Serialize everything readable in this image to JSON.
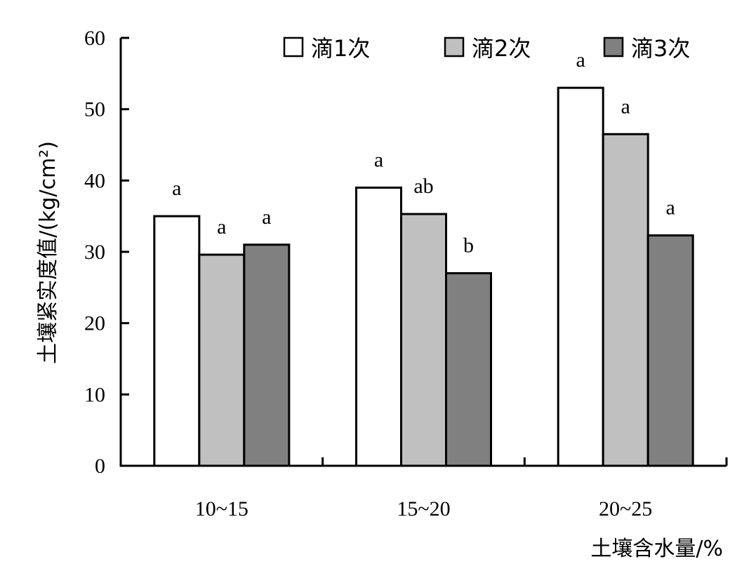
{
  "chart_data": {
    "type": "bar",
    "title": "",
    "xlabel": "土壤含水量/%",
    "ylabel": "土壤紧实度值/(kg/cm²)",
    "ylim": [
      0,
      60
    ],
    "yticks": [
      0,
      10,
      20,
      30,
      40,
      50,
      60
    ],
    "grid": false,
    "legend_position": "top",
    "categories": [
      "10~15",
      "15~20",
      "20~25"
    ],
    "series": [
      {
        "name": "滴1次",
        "color": "#ffffff",
        "values": [
          35.0,
          39.0,
          53.0
        ],
        "labels": [
          "a",
          "a",
          "a"
        ]
      },
      {
        "name": "滴2次",
        "color": "#c0c0c0",
        "values": [
          29.6,
          35.3,
          46.5
        ],
        "labels": [
          "a",
          "ab",
          "a"
        ]
      },
      {
        "name": "滴3次",
        "color": "#808080",
        "values": [
          31.0,
          27.0,
          32.3
        ],
        "labels": [
          "a",
          "b",
          "a"
        ]
      }
    ]
  }
}
